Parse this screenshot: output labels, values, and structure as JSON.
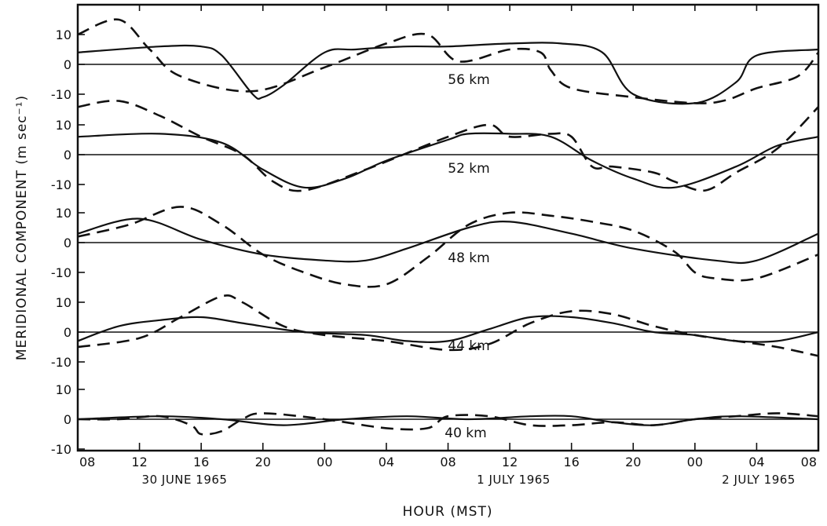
{
  "chart_data": {
    "type": "line",
    "ylabel": "MERIDIONAL COMPONENT (m sec⁻¹)",
    "xlabel": "HOUR (MST)",
    "x_unit": "hours after 08 MST 30 June 1965",
    "x_ticks": [
      "08",
      "12",
      "16",
      "20",
      "00",
      "04",
      "08",
      "12",
      "16",
      "20",
      "00",
      "04",
      "08"
    ],
    "date_labels": [
      "30 JUNE 1965",
      "1 JULY 1965",
      "2 JULY 1965"
    ],
    "y_tick_labels": [
      "10",
      "0",
      "-10"
    ],
    "y_tick_values": [
      10,
      0,
      -10
    ],
    "panels": [
      {
        "label": "56 km",
        "ylim": [
          -15,
          15
        ],
        "series": [
          {
            "style": "solid",
            "x": [
              0,
              8,
              12,
              14,
              17,
              18,
              20,
              24,
              27,
              32,
              36,
              42,
              47,
              51,
              54,
              60,
              64,
              66,
              72
            ],
            "y": [
              4,
              6,
              6,
              3,
              -10,
              -11,
              -7,
              4,
              5,
              6,
              6,
              7,
              7,
              4,
              -10,
              -13,
              -6,
              3,
              5
            ]
          },
          {
            "style": "dashed",
            "x": [
              0,
              4,
              7,
              10,
              17,
              24,
              30,
              34,
              37,
              42,
              45,
              46,
              48,
              54,
              60,
              63,
              66,
              70,
              72
            ],
            "y": [
              10,
              15,
              5,
              -4,
              -9,
              -1,
              7,
              10,
              1,
              5,
              4,
              -2,
              -8,
              -11,
              -13,
              -12,
              -8,
              -4,
              4
            ]
          }
        ]
      },
      {
        "label": "52 km",
        "ylim": [
          -15,
          15
        ],
        "series": [
          {
            "style": "solid",
            "x": [
              0,
              8,
              14,
              18,
              22,
              26,
              30,
              36,
              38,
              42,
              46,
              50,
              54,
              58,
              64,
              68,
              72
            ],
            "y": [
              6,
              7,
              4,
              -5,
              -11,
              -8,
              -2,
              5,
              7,
              7,
              6,
              -2,
              -8,
              -11,
              -4,
              3,
              6
            ]
          },
          {
            "style": "dashed",
            "x": [
              0,
              4,
              8,
              12,
              16,
              19,
              22,
              28,
              36,
              40,
              42,
              46,
              48,
              50,
              52,
              56,
              58,
              61,
              64,
              68,
              72
            ],
            "y": [
              16,
              18,
              13,
              6,
              0,
              -9,
              -12,
              -5,
              6,
              10,
              6,
              7,
              6,
              -4,
              -4,
              -6,
              -9,
              -12,
              -6,
              2,
              16
            ]
          }
        ]
      },
      {
        "label": "48 km",
        "ylim": [
          -15,
          15
        ],
        "series": [
          {
            "style": "solid",
            "x": [
              0,
              6,
              12,
              18,
              24,
              28,
              32,
              38,
              42,
              48,
              54,
              62,
              66,
              72
            ],
            "y": [
              3,
              8,
              1,
              -4,
              -6,
              -6,
              -2,
              5,
              7,
              3,
              -2,
              -6,
              -6,
              3
            ]
          },
          {
            "style": "dashed",
            "x": [
              0,
              5,
              10,
              14,
              18,
              22,
              26,
              30,
              34,
              38,
              42,
              46,
              50,
              54,
              58,
              60,
              62,
              66,
              72
            ],
            "y": [
              2,
              6,
              12,
              6,
              -4,
              -10,
              -14,
              -14,
              -5,
              6,
              10,
              9,
              7,
              4,
              -3,
              -10,
              -12,
              -12,
              -4
            ]
          }
        ]
      },
      {
        "label": "44 km",
        "ylim": [
          -15,
          15
        ],
        "series": [
          {
            "style": "solid",
            "x": [
              0,
              4,
              8,
              12,
              16,
              22,
              28,
              32,
              36,
              40,
              44,
              48,
              52,
              56,
              60,
              64,
              68,
              72
            ],
            "y": [
              -3,
              2,
              4,
              5,
              3,
              0,
              -1,
              -3,
              -3,
              1,
              5,
              5,
              3,
              0,
              -1,
              -3,
              -3,
              0
            ]
          },
          {
            "style": "dashed",
            "x": [
              0,
              6,
              10,
              14,
              16,
              20,
              24,
              30,
              36,
              40,
              44,
              48,
              52,
              56,
              60,
              64,
              68,
              72
            ],
            "y": [
              -5,
              -2,
              5,
              12,
              10,
              2,
              -1,
              -3,
              -6,
              -4,
              3,
              7,
              6,
              2,
              -1,
              -3,
              -5,
              -8
            ]
          }
        ]
      },
      {
        "label": "40 km",
        "ylim": [
          -10,
          10
        ],
        "series": [
          {
            "style": "solid",
            "x": [
              0,
              8,
              14,
              20,
              26,
              32,
              38,
              44,
              48,
              52,
              56,
              60,
              64,
              72
            ],
            "y": [
              0,
              1,
              0,
              -2,
              0,
              1,
              0,
              1,
              1,
              -1,
              -2,
              0,
              1,
              0
            ]
          },
          {
            "style": "dashed",
            "x": [
              0,
              4,
              8,
              11,
              12,
              14,
              16,
              18,
              24,
              30,
              34,
              36,
              40,
              44,
              48,
              52,
              56,
              60,
              64,
              68,
              72
            ],
            "y": [
              0,
              0,
              1,
              -2,
              -5,
              -4,
              0,
              2,
              0,
              -3,
              -3,
              1,
              1,
              -2,
              -2,
              -1,
              -2,
              0,
              1,
              2,
              1
            ]
          }
        ]
      }
    ]
  }
}
